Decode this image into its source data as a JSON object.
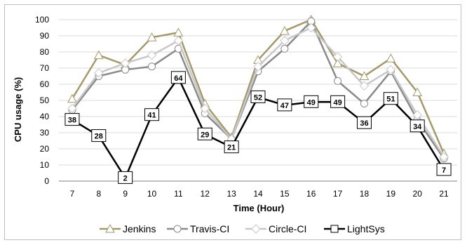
{
  "chart_data": {
    "type": "line",
    "xlabel": "Time (Hour)",
    "ylabel": "CPU usage (%)",
    "x": [
      "7",
      "8",
      "9",
      "10",
      "11",
      "12",
      "13",
      "14",
      "15",
      "16",
      "17",
      "18",
      "19",
      "20",
      "21"
    ],
    "ylim": [
      0,
      100
    ],
    "yticks": [
      "0",
      "10",
      "20",
      "30",
      "40",
      "50",
      "60",
      "70",
      "80",
      "90",
      "100"
    ],
    "grid": true,
    "legend_position": "bottom",
    "series": [
      {
        "name": "Jenkins",
        "marker": "triangle",
        "color": "#a39a6a",
        "values": [
          51,
          78,
          72,
          89,
          92,
          48,
          27,
          75,
          93,
          100,
          73,
          65,
          76,
          55,
          17
        ]
      },
      {
        "name": "Travis-CI",
        "marker": "circle",
        "color": "#8a8a8a",
        "values": [
          44,
          65,
          69,
          71,
          82,
          42,
          26,
          68,
          82,
          99,
          62,
          48,
          68,
          38,
          14
        ]
      },
      {
        "name": "Circle-CI",
        "marker": "diamond",
        "color": "#c8c8c8",
        "values": [
          45,
          67,
          73,
          78,
          87,
          45,
          26,
          71,
          87,
          95,
          77,
          59,
          69,
          41,
          15
        ]
      },
      {
        "name": "LightSys",
        "marker": "square",
        "color": "#000000",
        "values": [
          38,
          28,
          2,
          41,
          64,
          29,
          21,
          52,
          47,
          49,
          49,
          36,
          51,
          34,
          7
        ],
        "data_labels": [
          "38",
          "28",
          "2",
          "41",
          "64",
          "29",
          "21",
          "52",
          "47",
          "49",
          "49",
          "36",
          "51",
          "34",
          "7"
        ]
      }
    ]
  }
}
